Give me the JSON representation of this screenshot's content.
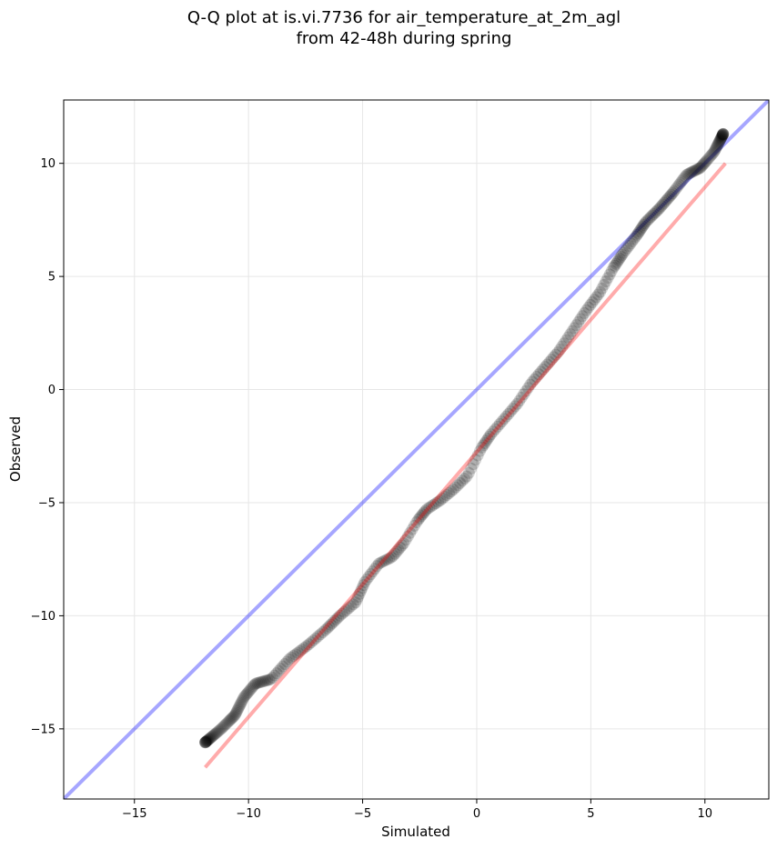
{
  "chart_data": {
    "type": "scatter",
    "title": "Q-Q plot at is.vi.7736 for air_temperature_at_2m_agl",
    "subtitle": "from 42-48h during spring",
    "xlabel": "Simulated",
    "ylabel": "Observed",
    "xlim": [
      -18.1,
      12.8
    ],
    "ylim": [
      -18.1,
      12.8
    ],
    "xticks": [
      -15,
      -10,
      -5,
      0,
      5,
      10
    ],
    "yticks": [
      -15,
      -10,
      -5,
      0,
      5,
      10
    ],
    "xtick_labels": [
      "−15",
      "−10",
      "−5",
      "0",
      "5",
      "10"
    ],
    "ytick_labels": [
      "−15",
      "−10",
      "−5",
      "0",
      "5",
      "10"
    ],
    "grid": true,
    "colors": {
      "points": "#000000",
      "identity_line": "#0000ff",
      "fit_line": "#ff0000"
    },
    "identity_line": {
      "x": [
        -18.1,
        12.8
      ],
      "y": [
        -18.1,
        12.8
      ]
    },
    "fit_line": {
      "x": [
        -11.9,
        10.9
      ],
      "y": [
        -16.7,
        10.0
      ]
    },
    "points_curve": {
      "x": [
        -11.9,
        -11.2,
        -10.6,
        -10.2,
        -9.7,
        -9.0,
        -8.2,
        -7.4,
        -6.6,
        -6.0,
        -5.3,
        -4.9,
        -4.3,
        -3.7,
        -3.2,
        -2.6,
        -2.2,
        -1.6,
        -1.0,
        -0.4,
        0.2,
        0.6,
        1.2,
        1.8,
        2.4,
        3.0,
        3.6,
        4.2,
        4.8,
        5.4,
        6.0,
        6.4,
        7.0,
        7.4,
        8.0,
        8.6,
        9.2,
        9.8,
        10.4,
        10.8
      ],
      "y": [
        -15.6,
        -15.0,
        -14.4,
        -13.6,
        -13.0,
        -12.8,
        -11.9,
        -11.3,
        -10.6,
        -10.0,
        -9.4,
        -8.5,
        -7.7,
        -7.4,
        -6.8,
        -5.8,
        -5.3,
        -4.9,
        -4.4,
        -3.8,
        -2.6,
        -2.0,
        -1.3,
        -0.6,
        0.3,
        1.0,
        1.7,
        2.6,
        3.5,
        4.3,
        5.4,
        6.0,
        6.8,
        7.4,
        8.0,
        8.7,
        9.5,
        9.8,
        10.5,
        11.3
      ],
      "n_points": 380
    }
  }
}
